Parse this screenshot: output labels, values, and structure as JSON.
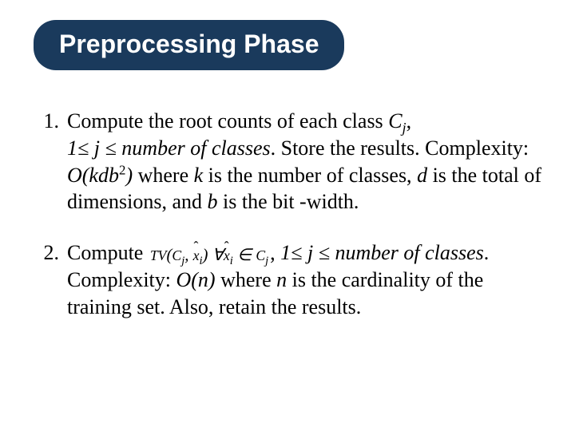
{
  "title": "Preprocessing Phase",
  "colors": {
    "pill_bg": "#1a3a5c",
    "pill_text": "#ffffff",
    "body_text": "#000000",
    "page_bg": "#ffffff"
  },
  "typography": {
    "title_font": "Verdana",
    "title_size_pt": 32,
    "title_weight": "bold",
    "body_font": "Times New Roman",
    "body_size_pt": 26
  },
  "items": [
    {
      "number": "1.",
      "line1_pre": "Compute the root counts of each class ",
      "line1_var": "C",
      "line1_sub": "j",
      "line1_post": ",",
      "line2_ital_left": "1",
      "line2_le1": "≤",
      "line2_ital_mid": " j ",
      "line2_le2": "≤",
      "line2_ital_right": " number of classes",
      "line2_post": ". Store the results.",
      "line3_pre": "Complexity: ",
      "line3_O": "O(kdb",
      "line3_sup": "2",
      "line3_O_close": ")",
      "line3_mid1": " where ",
      "line3_k": "k",
      "line3_mid2": " is the number of classes, ",
      "line3_d": "d",
      "line3_mid3": " is the total of dimensions, and ",
      "line3_b": "b",
      "line3_mid4": " is the bit -width."
    },
    {
      "number": "2.",
      "line1_pre": "Compute ",
      "formula_tv": "TV",
      "formula_open": "(",
      "formula_C1": "C",
      "formula_C1sub": "j",
      "formula_comma1": ", ",
      "formula_x1": "x",
      "formula_x1sub": "i",
      "formula_close": ")",
      "formula_forall": "∀",
      "formula_x2": "x",
      "formula_x2sub": "i",
      "formula_in": " ∈ ",
      "formula_C2": "C",
      "formula_C2sub": "j",
      "line1_post": ", ",
      "line1_ital_left": "1",
      "line1_le1": "≤",
      "line1_ital_mid": " j ",
      "line1_le2": "≤",
      "line1_ital_right": " number of classes",
      "line1_end": ".",
      "line2_pre": "Complexity: ",
      "line2_O": "O(n)",
      "line2_mid1": " where ",
      "line2_n": "n",
      "line2_mid2": " is the cardinality of the training set. Also, retain the results."
    }
  ]
}
